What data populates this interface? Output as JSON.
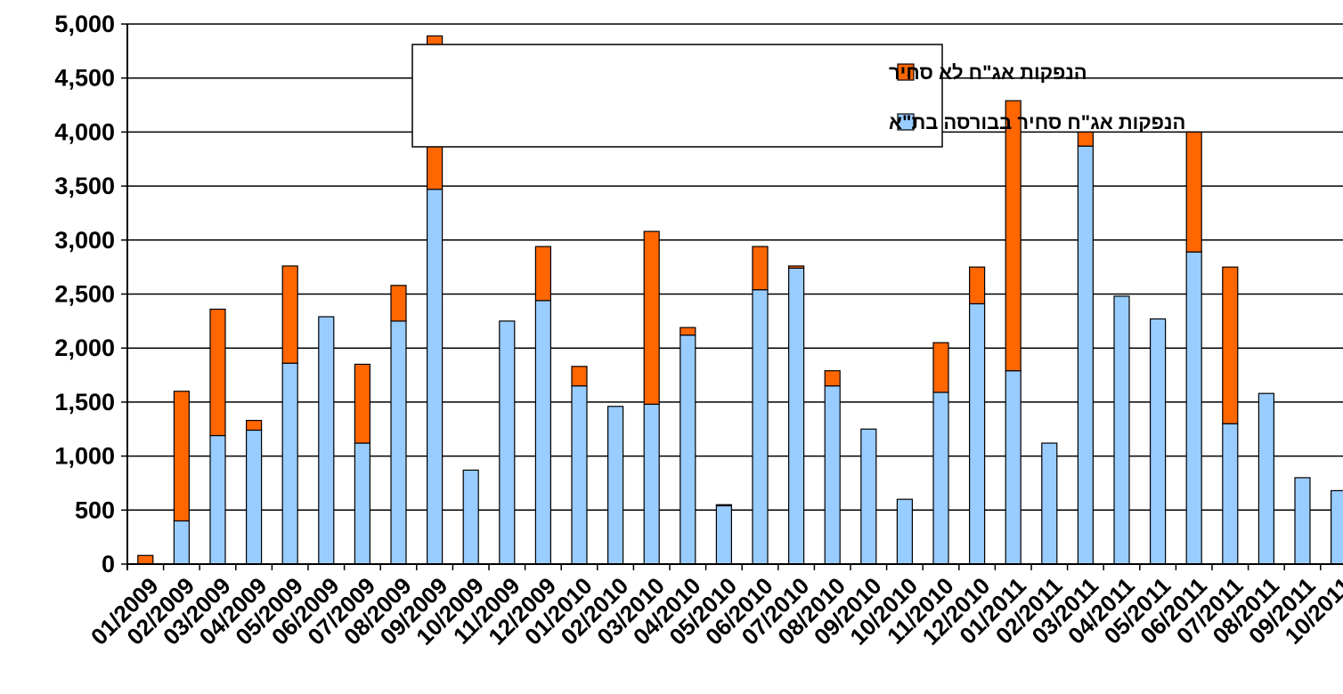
{
  "chart_data": {
    "type": "bar",
    "stacked": true,
    "categories": [
      "01/2009",
      "02/2009",
      "03/2009",
      "04/2009",
      "05/2009",
      "06/2009",
      "07/2009",
      "08/2009",
      "09/2009",
      "10/2009",
      "11/2009",
      "12/2009",
      "01/2010",
      "02/2010",
      "03/2010",
      "04/2010",
      "05/2010",
      "06/2010",
      "07/2010",
      "08/2010",
      "09/2010",
      "10/2010",
      "11/2010",
      "12/2010",
      "01/2011",
      "02/2011",
      "03/2011",
      "04/2011",
      "05/2011",
      "06/2011",
      "07/2011",
      "08/2011",
      "09/2011",
      "10/2011"
    ],
    "series": [
      {
        "name": "הנפקות אג\"ח סחיר בבורסה בת\"א",
        "color": "#99ccff",
        "values": [
          0,
          400,
          1190,
          1240,
          1860,
          2290,
          1120,
          2250,
          3470,
          870,
          2250,
          2440,
          1650,
          1460,
          1480,
          2120,
          540,
          2540,
          2740,
          1650,
          1250,
          600,
          1590,
          2410,
          1790,
          1120,
          3870,
          2480,
          2270,
          2890,
          1300,
          1580,
          800,
          680
        ]
      },
      {
        "name": "הנפקות אג\"ח לא סחיר",
        "color": "#ff6600",
        "values": [
          80,
          1200,
          1170,
          90,
          900,
          0,
          730,
          330,
          1420,
          0,
          0,
          500,
          180,
          0,
          1600,
          70,
          10,
          400,
          20,
          140,
          0,
          0,
          460,
          340,
          2500,
          0,
          130,
          0,
          0,
          1110,
          1450,
          0,
          0,
          0
        ]
      }
    ],
    "ylim": [
      0,
      5000
    ],
    "yticks": [
      0,
      500,
      1000,
      1500,
      2000,
      2500,
      3000,
      3500,
      4000,
      4500,
      5000
    ],
    "ytick_labels": [
      "0",
      "500",
      "1,000",
      "1,500",
      "2,000",
      "2,500",
      "3,000",
      "3,500",
      "4,000",
      "4,500",
      "5,000"
    ],
    "grid": "horizontal",
    "legend_position": "top-center",
    "legend_order": [
      1,
      0
    ],
    "title": "",
    "xlabel": "",
    "ylabel": ""
  }
}
